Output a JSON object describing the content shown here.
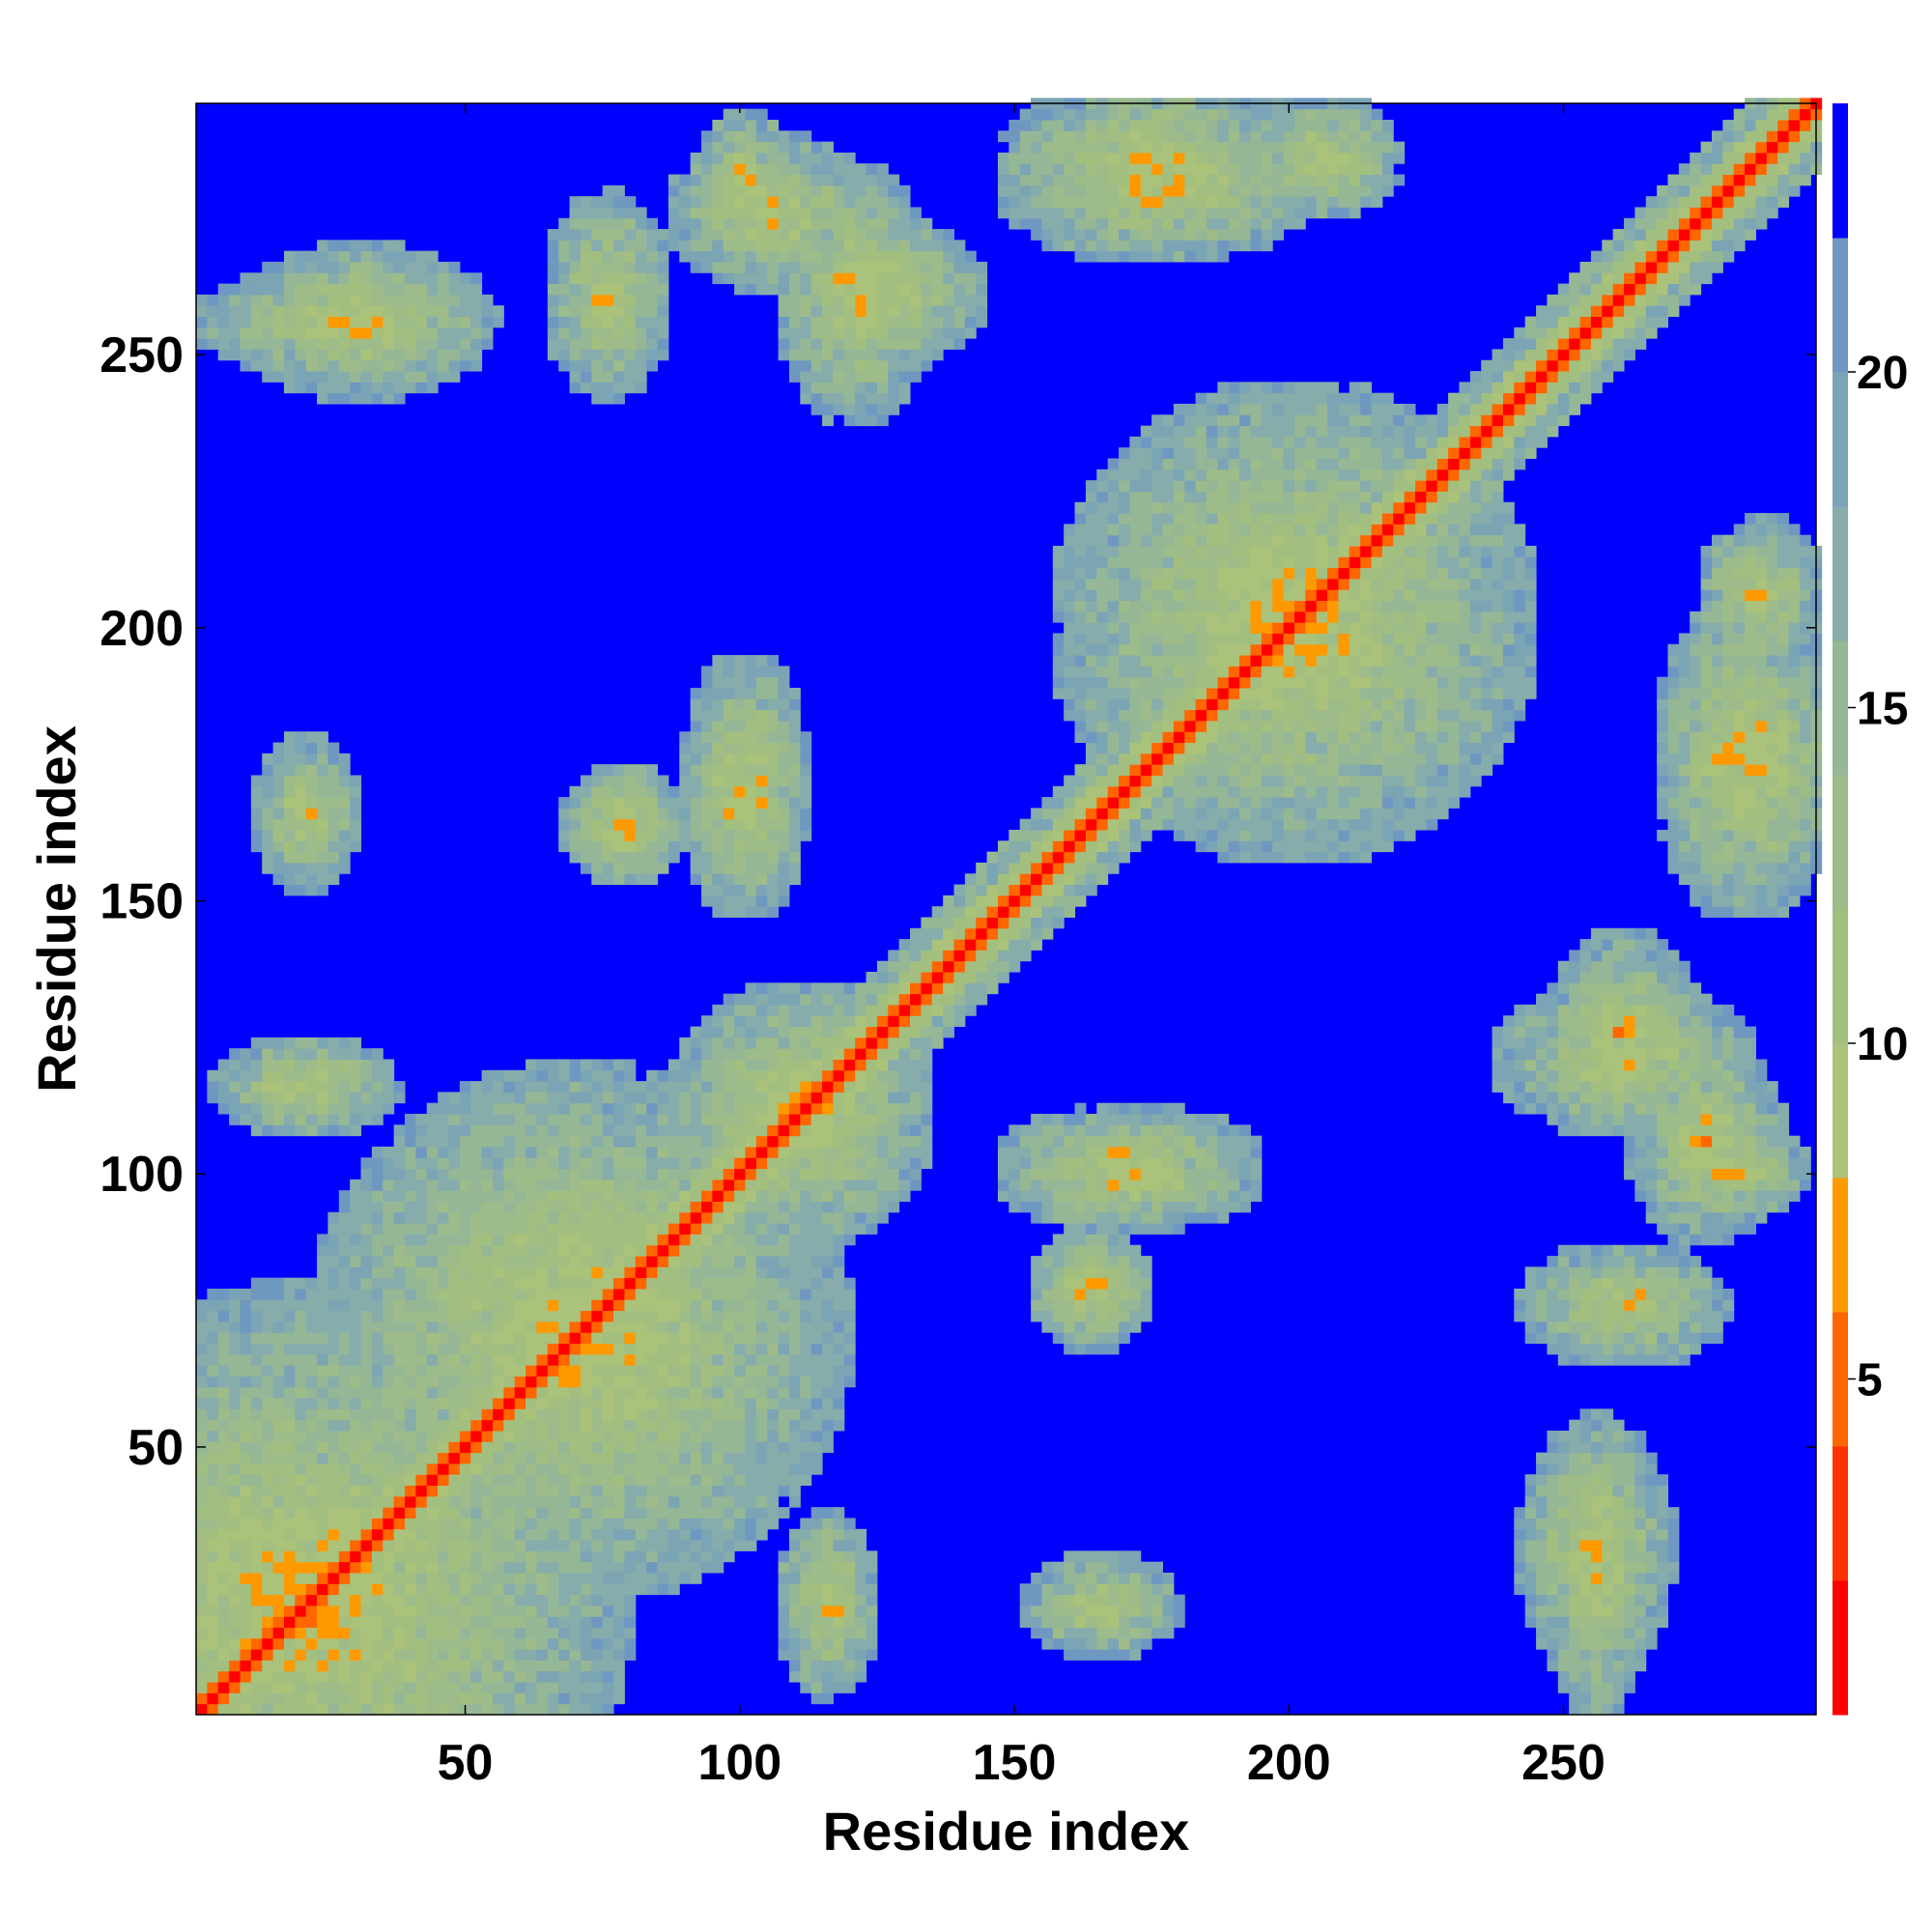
{
  "chart_data": {
    "type": "heatmap",
    "title": "",
    "xlabel": "Residue index",
    "ylabel": "Residue index",
    "xlim": [
      1,
      296
    ],
    "ylim": [
      1,
      296
    ],
    "x_ticks": [
      50,
      100,
      150,
      200,
      250
    ],
    "y_ticks": [
      50,
      100,
      150,
      200,
      250
    ],
    "grid": false,
    "colorbar": {
      "range": [
        0,
        24
      ],
      "ticks": [
        5,
        10,
        15,
        20
      ],
      "levels": [
        {
          "from": 0,
          "to": 2,
          "color": "#ff0000"
        },
        {
          "from": 2,
          "to": 4,
          "color": "#ff3300"
        },
        {
          "from": 4,
          "to": 6,
          "color": "#ff6600"
        },
        {
          "from": 6,
          "to": 8,
          "color": "#ff9900"
        },
        {
          "from": 8,
          "to": 10,
          "color": "#aac27a"
        },
        {
          "from": 10,
          "to": 12,
          "color": "#a3bf80"
        },
        {
          "from": 12,
          "to": 14,
          "color": "#9ebb8a"
        },
        {
          "from": 14,
          "to": 16,
          "color": "#95b796"
        },
        {
          "from": 16,
          "to": 18,
          "color": "#86acab"
        },
        {
          "from": 18,
          "to": 20,
          "color": "#7ba4b5"
        },
        {
          "from": 20,
          "to": 22,
          "color": "#6f98c1"
        },
        {
          "from": 22,
          "to": 24,
          "color": "#0000ff"
        }
      ]
    },
    "contact_regions": [
      {
        "x": 1,
        "y": 1,
        "x2": 296,
        "y2": 296,
        "kind": "diagonal"
      },
      {
        "x": 20,
        "y": 20,
        "rx": 60,
        "ry": 60,
        "level": "mid"
      },
      {
        "x": 70,
        "y": 70,
        "rx": 50,
        "ry": 50,
        "level": "mid"
      },
      {
        "x": 110,
        "y": 110,
        "rx": 25,
        "ry": 25,
        "level": "mid"
      },
      {
        "x": 20,
        "y": 115,
        "rx": 18,
        "ry": 10,
        "level": "mid"
      },
      {
        "x": 27,
        "y": 255,
        "rx": 30,
        "ry": 10,
        "level": "mid"
      },
      {
        "x": 78,
        "y": 163,
        "rx": 12,
        "ry": 12,
        "level": "mid"
      },
      {
        "x": 98,
        "y": 170,
        "rx": 10,
        "ry": 25,
        "level": "mid"
      },
      {
        "x": 105,
        "y": 275,
        "rx": 20,
        "ry": 15,
        "level": "mid"
      },
      {
        "x": 125,
        "y": 260,
        "rx": 20,
        "ry": 15,
        "level": "mid"
      },
      {
        "x": 163,
        "y": 78,
        "rx": 12,
        "ry": 12,
        "level": "mid"
      },
      {
        "x": 170,
        "y": 102,
        "rx": 25,
        "ry": 10,
        "level": "mid"
      },
      {
        "x": 165,
        "y": 20,
        "rx": 15,
        "ry": 10,
        "level": "mid"
      },
      {
        "x": 175,
        "y": 280,
        "rx": 30,
        "ry": 15,
        "level": "mid"
      },
      {
        "x": 200,
        "y": 200,
        "rx": 45,
        "ry": 45,
        "level": "mid"
      },
      {
        "x": 255,
        "y": 30,
        "rx": 15,
        "ry": 25,
        "level": "mid"
      },
      {
        "x": 260,
        "y": 120,
        "rx": 25,
        "ry": 15,
        "level": "mid"
      },
      {
        "x": 280,
        "y": 100,
        "rx": 15,
        "ry": 10,
        "level": "mid"
      },
      {
        "x": 285,
        "y": 175,
        "rx": 15,
        "ry": 30,
        "level": "mid"
      },
      {
        "x": 285,
        "y": 205,
        "rx": 12,
        "ry": 15,
        "level": "mid"
      },
      {
        "x": 260,
        "y": 75,
        "rx": 20,
        "ry": 12,
        "level": "mid"
      }
    ]
  }
}
